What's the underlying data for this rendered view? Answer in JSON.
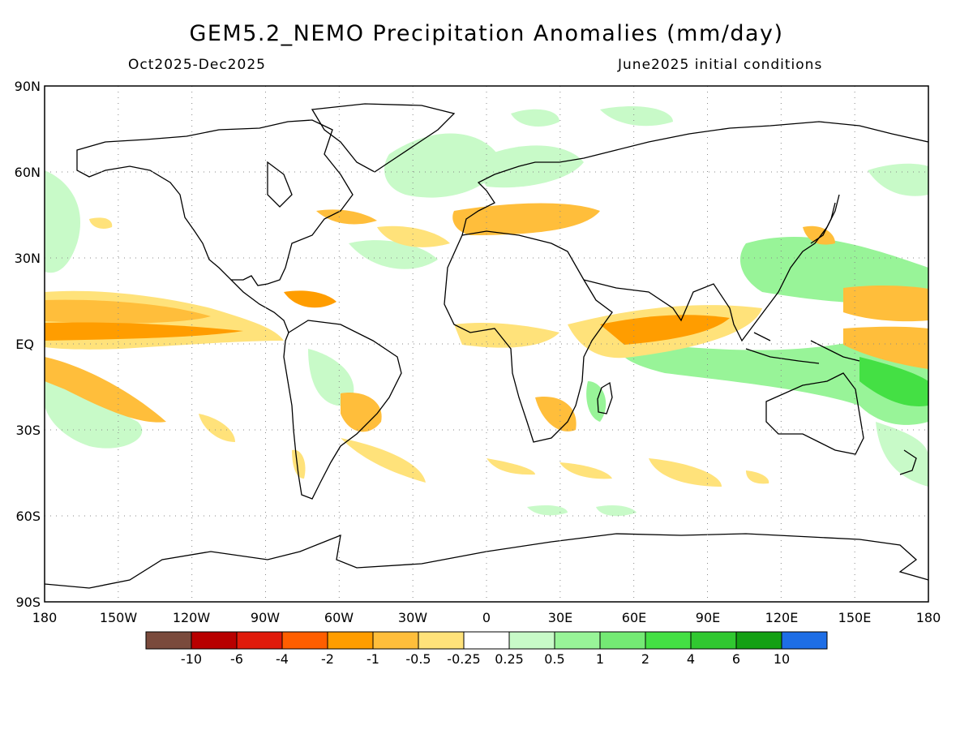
{
  "header": {
    "title": "GEM5.2_NEMO Precipitation Anomalies (mm/day)",
    "period": "Oct2025-Dec2025",
    "init": "June2025 initial conditions"
  },
  "map": {
    "lat_labels": [
      "90N",
      "60N",
      "30N",
      "EQ",
      "30S",
      "60S",
      "90S"
    ],
    "lon_labels": [
      "180",
      "150W",
      "120W",
      "90W",
      "60W",
      "30W",
      "0",
      "30E",
      "60E",
      "90E",
      "120E",
      "150E",
      "180"
    ]
  },
  "colorbar": {
    "colors": [
      "#7a4a3c",
      "#b80000",
      "#e01a0a",
      "#ff5e00",
      "#ff9d00",
      "#ffbe3b",
      "#ffe27a",
      "#ffffff",
      "#c8fac8",
      "#98f498",
      "#74ea74",
      "#44e044",
      "#30c830",
      "#14a014",
      "#1e6ee6"
    ],
    "labels": [
      "-10",
      "-6",
      "-4",
      "-2",
      "-1",
      "-0.5",
      "-0.25",
      "0.25",
      "0.5",
      "1",
      "2",
      "4",
      "6",
      "10"
    ]
  },
  "palette": {
    "dry_light": "#ffe27a",
    "dry_mid": "#ffbe3b",
    "dry_strong": "#ff9d00",
    "dry_core": "#ff5e00",
    "wet_light": "#c8fac8",
    "wet_mid": "#98f498",
    "wet_strong": "#44e044",
    "coast": "#000000",
    "grid": "#888888"
  }
}
